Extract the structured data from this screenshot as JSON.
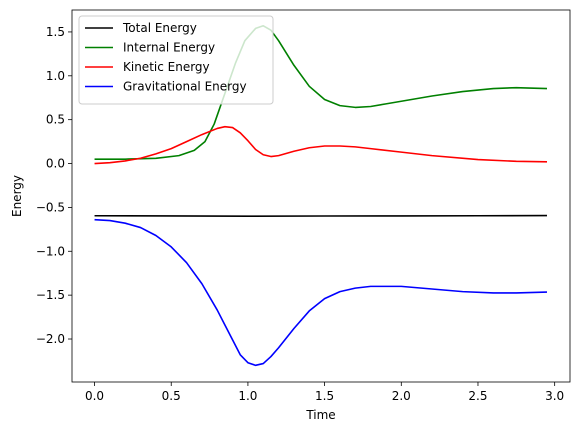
{
  "chart_data": {
    "type": "line",
    "title": "",
    "xlabel": "Time",
    "ylabel": "Energy",
    "xlim": [
      -0.147,
      3.1
    ],
    "ylim": [
      -2.49,
      1.75
    ],
    "xticks": [
      0.0,
      0.5,
      1.0,
      1.5,
      2.0,
      2.5,
      3.0
    ],
    "xtick_labels": [
      "0.0",
      "0.5",
      "1.0",
      "1.5",
      "2.0",
      "2.5",
      "3.0"
    ],
    "yticks": [
      -2.0,
      -1.5,
      -1.0,
      -0.5,
      0.0,
      0.5,
      1.0,
      1.5
    ],
    "ytick_labels": [
      "−2.0",
      "−1.5",
      "−1.0",
      "−0.5",
      "0.0",
      "0.5",
      "1.0",
      "1.5"
    ],
    "grid": false,
    "legend_position": "top-left",
    "series": [
      {
        "name": "Total Energy",
        "color": "#000000",
        "x": [
          0.0,
          0.5,
          1.0,
          1.5,
          2.0,
          2.5,
          2.95
        ],
        "y": [
          -0.595,
          -0.597,
          -0.6,
          -0.598,
          -0.597,
          -0.595,
          -0.593
        ]
      },
      {
        "name": "Internal Energy",
        "color": "#008000",
        "x": [
          0.0,
          0.2,
          0.4,
          0.55,
          0.65,
          0.72,
          0.78,
          0.85,
          0.92,
          0.98,
          1.05,
          1.1,
          1.15,
          1.2,
          1.3,
          1.4,
          1.5,
          1.6,
          1.7,
          1.8,
          1.9,
          2.0,
          2.2,
          2.4,
          2.6,
          2.75,
          2.95
        ],
        "y": [
          0.05,
          0.05,
          0.06,
          0.09,
          0.15,
          0.25,
          0.45,
          0.8,
          1.15,
          1.4,
          1.54,
          1.57,
          1.52,
          1.4,
          1.12,
          0.88,
          0.73,
          0.66,
          0.64,
          0.65,
          0.68,
          0.71,
          0.77,
          0.82,
          0.855,
          0.865,
          0.855
        ]
      },
      {
        "name": "Kinetic Energy",
        "color": "#ff0000",
        "x": [
          0.0,
          0.1,
          0.2,
          0.3,
          0.4,
          0.5,
          0.6,
          0.7,
          0.8,
          0.85,
          0.9,
          0.95,
          1.0,
          1.05,
          1.1,
          1.15,
          1.2,
          1.3,
          1.4,
          1.5,
          1.6,
          1.7,
          1.8,
          2.0,
          2.2,
          2.5,
          2.75,
          2.95
        ],
        "y": [
          0.0,
          0.01,
          0.03,
          0.06,
          0.11,
          0.17,
          0.25,
          0.33,
          0.4,
          0.42,
          0.41,
          0.35,
          0.26,
          0.16,
          0.1,
          0.08,
          0.09,
          0.14,
          0.18,
          0.2,
          0.2,
          0.19,
          0.17,
          0.13,
          0.09,
          0.045,
          0.025,
          0.02
        ]
      },
      {
        "name": "Gravitational Energy",
        "color": "#0000ff",
        "x": [
          0.0,
          0.1,
          0.2,
          0.3,
          0.4,
          0.5,
          0.6,
          0.7,
          0.8,
          0.85,
          0.9,
          0.95,
          1.0,
          1.05,
          1.1,
          1.15,
          1.2,
          1.3,
          1.4,
          1.5,
          1.6,
          1.7,
          1.8,
          2.0,
          2.2,
          2.4,
          2.6,
          2.75,
          2.95
        ],
        "y": [
          -0.64,
          -0.65,
          -0.68,
          -0.73,
          -0.82,
          -0.95,
          -1.13,
          -1.37,
          -1.67,
          -1.84,
          -2.01,
          -2.18,
          -2.27,
          -2.3,
          -2.28,
          -2.2,
          -2.1,
          -1.88,
          -1.68,
          -1.54,
          -1.46,
          -1.42,
          -1.4,
          -1.4,
          -1.43,
          -1.46,
          -1.475,
          -1.475,
          -1.465
        ]
      }
    ]
  }
}
